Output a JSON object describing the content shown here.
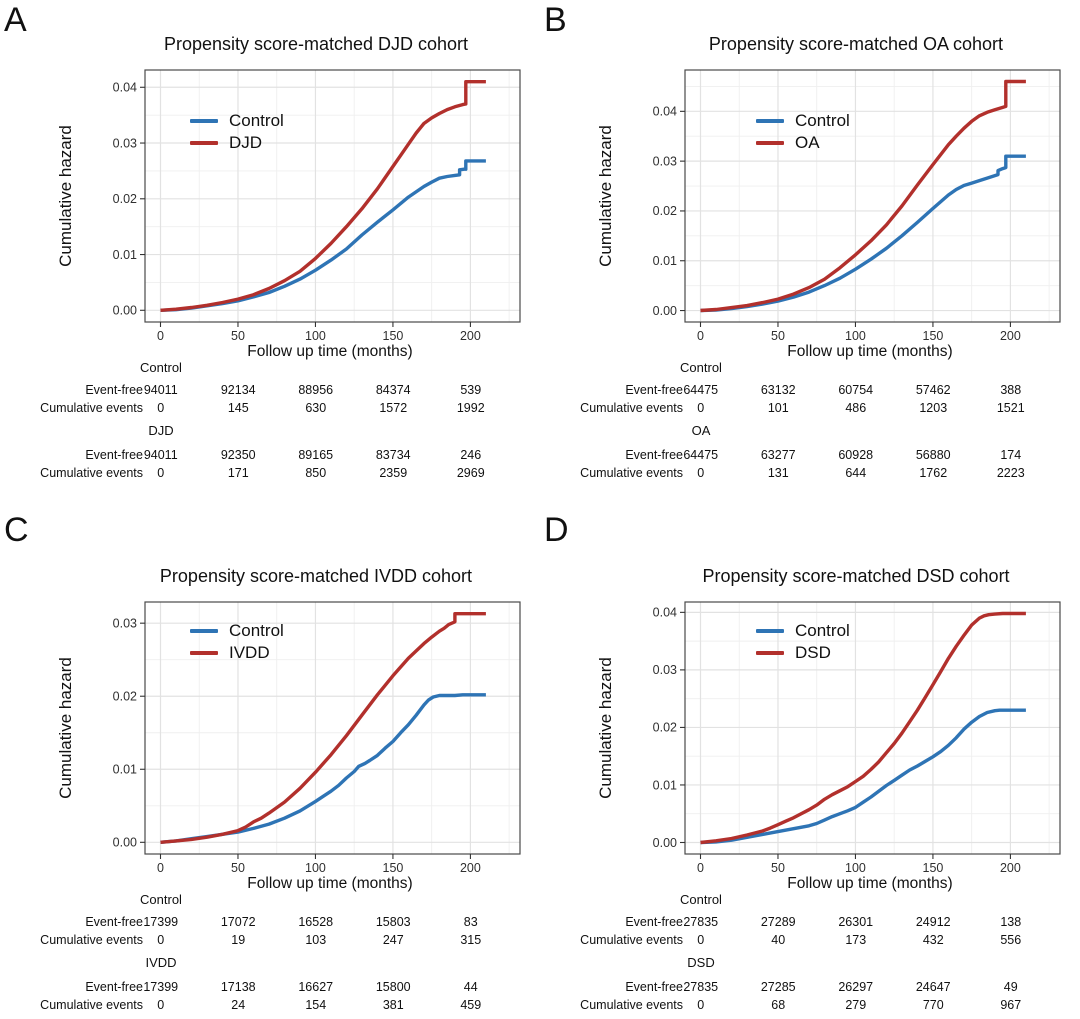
{
  "chart_data": [
    {
      "type": "line",
      "panel_label": "A",
      "title": "Propensity score-matched DJD cohort",
      "xlabel": "Follow up time (months)",
      "ylabel": "Cumulative hazard",
      "xticks": [
        0,
        50,
        100,
        150,
        200
      ],
      "ytick_labels": [
        "0.00",
        "0.01",
        "0.02",
        "0.03",
        "0.04"
      ],
      "xlim": [
        -10,
        232
      ],
      "ylim": [
        -0.0021,
        0.0431
      ],
      "grid": true,
      "legend_position": "inside-top-left",
      "series": [
        {
          "name": "Control",
          "color": "#2E74B5",
          "x": [
            0,
            10,
            20,
            30,
            40,
            50,
            60,
            70,
            80,
            90,
            100,
            110,
            120,
            130,
            140,
            150,
            160,
            170,
            175,
            180,
            185,
            190,
            193,
            193,
            196,
            197,
            197,
            210
          ],
          "y": [
            0,
            0.0001,
            0.0004,
            0.0008,
            0.0012,
            0.0017,
            0.0024,
            0.0032,
            0.0043,
            0.0056,
            0.0072,
            0.009,
            0.011,
            0.0135,
            0.0158,
            0.018,
            0.0203,
            0.0222,
            0.023,
            0.0237,
            0.024,
            0.0242,
            0.0243,
            0.0252,
            0.0253,
            0.0253,
            0.0268,
            0.0268
          ]
        },
        {
          "name": "DJD",
          "color": "#B2302C",
          "x": [
            0,
            10,
            20,
            30,
            40,
            50,
            60,
            70,
            80,
            90,
            100,
            110,
            120,
            130,
            140,
            150,
            155,
            160,
            165,
            170,
            175,
            180,
            185,
            190,
            195,
            197,
            197,
            210
          ],
          "y": [
            0,
            0.0002,
            0.0005,
            0.0009,
            0.0014,
            0.002,
            0.0028,
            0.0039,
            0.0053,
            0.007,
            0.0093,
            0.012,
            0.015,
            0.0182,
            0.0218,
            0.0258,
            0.0278,
            0.0298,
            0.0318,
            0.0335,
            0.0345,
            0.0353,
            0.036,
            0.0365,
            0.0369,
            0.037,
            0.041,
            0.041
          ]
        }
      ],
      "risk_table": {
        "times": [
          0,
          50,
          100,
          150,
          200
        ],
        "row_labels": [
          "Event-free",
          "Cumulative events"
        ],
        "groups": [
          {
            "name": "Control",
            "event_free": [
              94011,
              92134,
              88956,
              84374,
              539
            ],
            "cumulative_events": [
              0,
              145,
              630,
              1572,
              1992
            ]
          },
          {
            "name": "DJD",
            "event_free": [
              94011,
              92350,
              89165,
              83734,
              246
            ],
            "cumulative_events": [
              0,
              171,
              850,
              2359,
              2969
            ]
          }
        ]
      }
    },
    {
      "type": "line",
      "panel_label": "B",
      "title": "Propensity score-matched OA cohort",
      "xlabel": "Follow up time (months)",
      "ylabel": "Cumulative hazard",
      "xticks": [
        0,
        50,
        100,
        150,
        200
      ],
      "ytick_labels": [
        "0.00",
        "0.01",
        "0.02",
        "0.03",
        "0.04"
      ],
      "xlim": [
        -10,
        232
      ],
      "ylim": [
        -0.0023,
        0.0483
      ],
      "grid": true,
      "legend_position": "inside-top-left",
      "series": [
        {
          "name": "Control",
          "color": "#2E74B5",
          "x": [
            0,
            10,
            20,
            30,
            40,
            50,
            60,
            70,
            80,
            90,
            100,
            110,
            120,
            130,
            140,
            150,
            160,
            165,
            170,
            175,
            180,
            185,
            190,
            192,
            192,
            195,
            197,
            197,
            210
          ],
          "y": [
            0,
            0.0001,
            0.0004,
            0.0008,
            0.0013,
            0.0019,
            0.0027,
            0.0037,
            0.005,
            0.0065,
            0.0083,
            0.0103,
            0.0125,
            0.015,
            0.0177,
            0.0205,
            0.0232,
            0.0243,
            0.0251,
            0.0256,
            0.0261,
            0.0266,
            0.0271,
            0.0273,
            0.0281,
            0.0285,
            0.0287,
            0.031,
            0.031
          ]
        },
        {
          "name": "OA",
          "color": "#B2302C",
          "x": [
            0,
            10,
            20,
            30,
            40,
            50,
            60,
            70,
            80,
            90,
            100,
            110,
            120,
            130,
            140,
            150,
            160,
            165,
            170,
            175,
            180,
            185,
            190,
            195,
            197,
            197,
            210
          ],
          "y": [
            0,
            0.0002,
            0.0006,
            0.001,
            0.0016,
            0.0023,
            0.0033,
            0.0046,
            0.0063,
            0.0086,
            0.0112,
            0.014,
            0.0172,
            0.021,
            0.0252,
            0.0293,
            0.0333,
            0.035,
            0.0366,
            0.038,
            0.0391,
            0.0398,
            0.0403,
            0.0408,
            0.041,
            0.046,
            0.046
          ]
        }
      ],
      "risk_table": {
        "times": [
          0,
          50,
          100,
          150,
          200
        ],
        "row_labels": [
          "Event-free",
          "Cumulative events"
        ],
        "groups": [
          {
            "name": "Control",
            "event_free": [
              64475,
              63132,
              60754,
              57462,
              388
            ],
            "cumulative_events": [
              0,
              101,
              486,
              1203,
              1521
            ]
          },
          {
            "name": "OA",
            "event_free": [
              64475,
              63277,
              60928,
              56880,
              174
            ],
            "cumulative_events": [
              0,
              131,
              644,
              1762,
              2223
            ]
          }
        ]
      }
    },
    {
      "type": "line",
      "panel_label": "C",
      "title": "Propensity score-matched IVDD cohort",
      "xlabel": "Follow up time (months)",
      "ylabel": "Cumulative hazard",
      "xticks": [
        0,
        50,
        100,
        150,
        200
      ],
      "ytick_labels": [
        "0.00",
        "0.01",
        "0.02",
        "0.03"
      ],
      "xlim": [
        -10,
        232
      ],
      "ylim": [
        -0.0016,
        0.0329
      ],
      "grid": true,
      "legend_position": "inside-top-left",
      "series": [
        {
          "name": "Control",
          "color": "#2E74B5",
          "x": [
            0,
            10,
            20,
            30,
            40,
            50,
            60,
            70,
            80,
            90,
            100,
            105,
            110,
            115,
            120,
            125,
            128,
            132,
            135,
            140,
            145,
            150,
            155,
            160,
            165,
            170,
            173,
            176,
            180,
            190,
            195,
            210
          ],
          "y": [
            0,
            0.0002,
            0.0005,
            0.0008,
            0.0011,
            0.0014,
            0.0019,
            0.0025,
            0.0033,
            0.0043,
            0.0056,
            0.0063,
            0.007,
            0.0078,
            0.0088,
            0.0097,
            0.0104,
            0.0108,
            0.0112,
            0.0119,
            0.0129,
            0.0138,
            0.015,
            0.0161,
            0.0174,
            0.0188,
            0.0195,
            0.0199,
            0.0201,
            0.0201,
            0.0202,
            0.0202
          ]
        },
        {
          "name": "IVDD",
          "color": "#B2302C",
          "x": [
            0,
            10,
            20,
            30,
            40,
            50,
            55,
            60,
            65,
            70,
            80,
            90,
            100,
            110,
            120,
            130,
            140,
            150,
            160,
            165,
            170,
            175,
            180,
            183,
            186,
            189,
            190,
            190,
            210
          ],
          "y": [
            0,
            0.0002,
            0.0004,
            0.0007,
            0.0011,
            0.0016,
            0.0021,
            0.0028,
            0.0033,
            0.004,
            0.0055,
            0.0074,
            0.0096,
            0.012,
            0.0146,
            0.0174,
            0.0202,
            0.0228,
            0.0252,
            0.0262,
            0.0272,
            0.0281,
            0.0289,
            0.0293,
            0.0298,
            0.0301,
            0.0302,
            0.0313,
            0.0313
          ]
        }
      ],
      "risk_table": {
        "times": [
          0,
          50,
          100,
          150,
          200
        ],
        "row_labels": [
          "Event-free",
          "Cumulative events"
        ],
        "groups": [
          {
            "name": "Control",
            "event_free": [
              17399,
              17072,
              16528,
              15803,
              83
            ],
            "cumulative_events": [
              0,
              19,
              103,
              247,
              315
            ]
          },
          {
            "name": "IVDD",
            "event_free": [
              17399,
              17138,
              16627,
              15800,
              44
            ],
            "cumulative_events": [
              0,
              24,
              154,
              381,
              459
            ]
          }
        ]
      }
    },
    {
      "type": "line",
      "panel_label": "D",
      "title": "Propensity score-matched DSD cohort",
      "xlabel": "Follow up time (months)",
      "ylabel": "Cumulative hazard",
      "xticks": [
        0,
        50,
        100,
        150,
        200
      ],
      "ytick_labels": [
        "0.00",
        "0.01",
        "0.02",
        "0.03",
        "0.04"
      ],
      "xlim": [
        -10,
        232
      ],
      "ylim": [
        -0.002,
        0.0418
      ],
      "grid": true,
      "legend_position": "inside-top-left",
      "series": [
        {
          "name": "Control",
          "color": "#2E74B5",
          "x": [
            0,
            10,
            20,
            30,
            40,
            50,
            60,
            70,
            75,
            80,
            85,
            90,
            95,
            100,
            105,
            110,
            115,
            120,
            125,
            130,
            135,
            140,
            145,
            150,
            155,
            160,
            165,
            170,
            175,
            180,
            185,
            190,
            193,
            210
          ],
          "y": [
            0,
            0.0001,
            0.0004,
            0.0009,
            0.0014,
            0.0019,
            0.0024,
            0.0029,
            0.0033,
            0.0039,
            0.0045,
            0.005,
            0.0055,
            0.0061,
            0.007,
            0.0079,
            0.0089,
            0.0099,
            0.0108,
            0.0117,
            0.0126,
            0.0133,
            0.0141,
            0.0149,
            0.0158,
            0.0169,
            0.0182,
            0.0197,
            0.0209,
            0.0219,
            0.0226,
            0.0229,
            0.023,
            0.023
          ]
        },
        {
          "name": "DSD",
          "color": "#B2302C",
          "x": [
            0,
            10,
            20,
            30,
            40,
            45,
            50,
            55,
            60,
            65,
            70,
            75,
            80,
            85,
            90,
            95,
            100,
            105,
            110,
            115,
            120,
            125,
            130,
            135,
            140,
            145,
            150,
            155,
            160,
            165,
            170,
            175,
            180,
            183,
            186,
            190,
            195,
            210
          ],
          "y": [
            0,
            0.0003,
            0.0007,
            0.0013,
            0.002,
            0.0025,
            0.0031,
            0.0037,
            0.0043,
            0.005,
            0.0057,
            0.0065,
            0.0075,
            0.0083,
            0.009,
            0.0097,
            0.0106,
            0.0115,
            0.0127,
            0.014,
            0.0156,
            0.0172,
            0.019,
            0.021,
            0.023,
            0.0252,
            0.0274,
            0.0297,
            0.032,
            0.0341,
            0.036,
            0.0378,
            0.039,
            0.0394,
            0.0396,
            0.0397,
            0.0398,
            0.0398
          ]
        }
      ],
      "risk_table": {
        "times": [
          0,
          50,
          100,
          150,
          200
        ],
        "row_labels": [
          "Event-free",
          "Cumulative events"
        ],
        "groups": [
          {
            "name": "Control",
            "event_free": [
              27835,
              27289,
              26301,
              24912,
              138
            ],
            "cumulative_events": [
              0,
              40,
              173,
              432,
              556
            ]
          },
          {
            "name": "DSD",
            "event_free": [
              27835,
              27285,
              26297,
              24647,
              49
            ],
            "cumulative_events": [
              0,
              68,
              279,
              770,
              967
            ]
          }
        ]
      }
    }
  ]
}
